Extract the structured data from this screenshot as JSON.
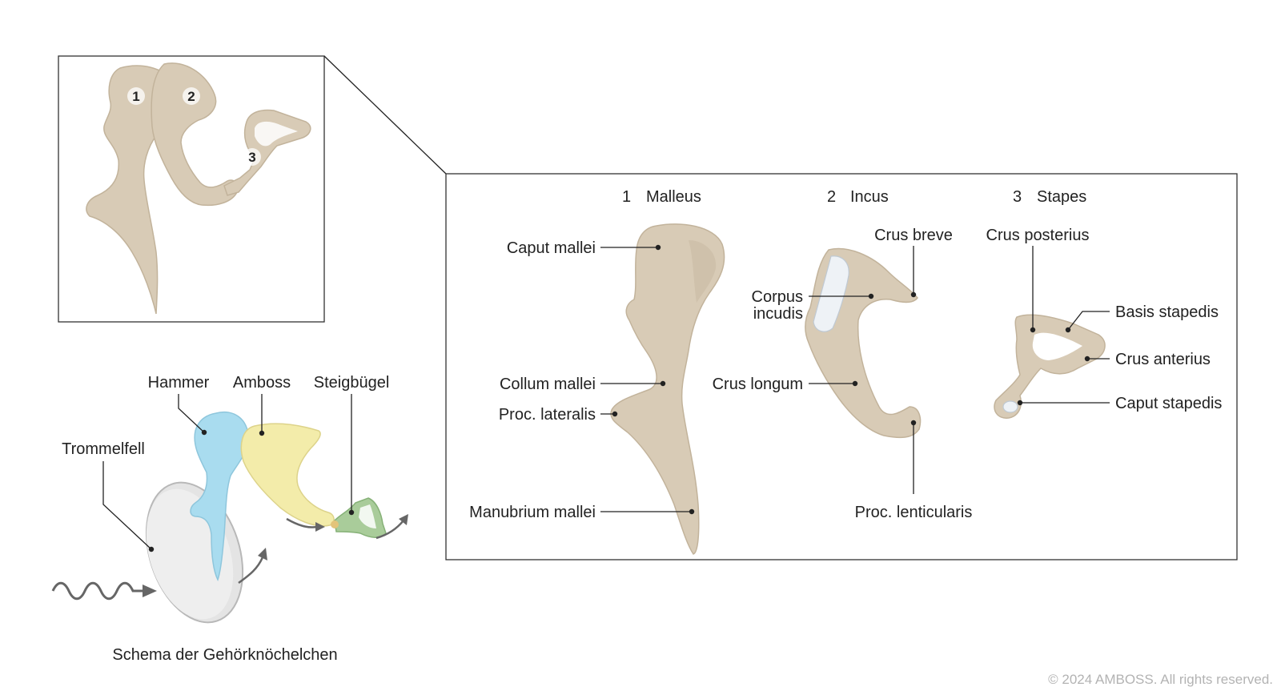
{
  "overview": {
    "numbers": [
      "1",
      "2",
      "3"
    ]
  },
  "detail": {
    "malleus": {
      "number": "1",
      "title": "Malleus",
      "labels": {
        "caput": "Caput mallei",
        "collum": "Collum mallei",
        "lateralis": "Proc. lateralis",
        "manubrium": "Manubrium mallei"
      }
    },
    "incus": {
      "number": "2",
      "title": "Incus",
      "labels": {
        "crus_breve": "Crus breve",
        "corpus_line1": "Corpus",
        "corpus_line2": "incudis",
        "crus_longum": "Crus longum",
        "lenticularis": "Proc. lenticularis"
      }
    },
    "stapes": {
      "number": "3",
      "title": "Stapes",
      "labels": {
        "crus_posterius": "Crus posterius",
        "basis": "Basis stapedis",
        "crus_anterius": "Crus anterius",
        "caput": "Caput stapedis"
      }
    }
  },
  "schema": {
    "hammer": "Hammer",
    "amboss": "Amboss",
    "steigbuegel": "Steigbügel",
    "trommelfell": "Trommelfell",
    "caption": "Schema der Gehörknöchelchen",
    "colors": {
      "hammer": "#a9dcef",
      "amboss": "#f3ecaa",
      "steigbuegel": "#a9cc9a",
      "trommelfell": "#e4e4e4",
      "bone": "#d8cbb6"
    }
  },
  "copyright": "© 2024 AMBOSS. All rights reserved."
}
